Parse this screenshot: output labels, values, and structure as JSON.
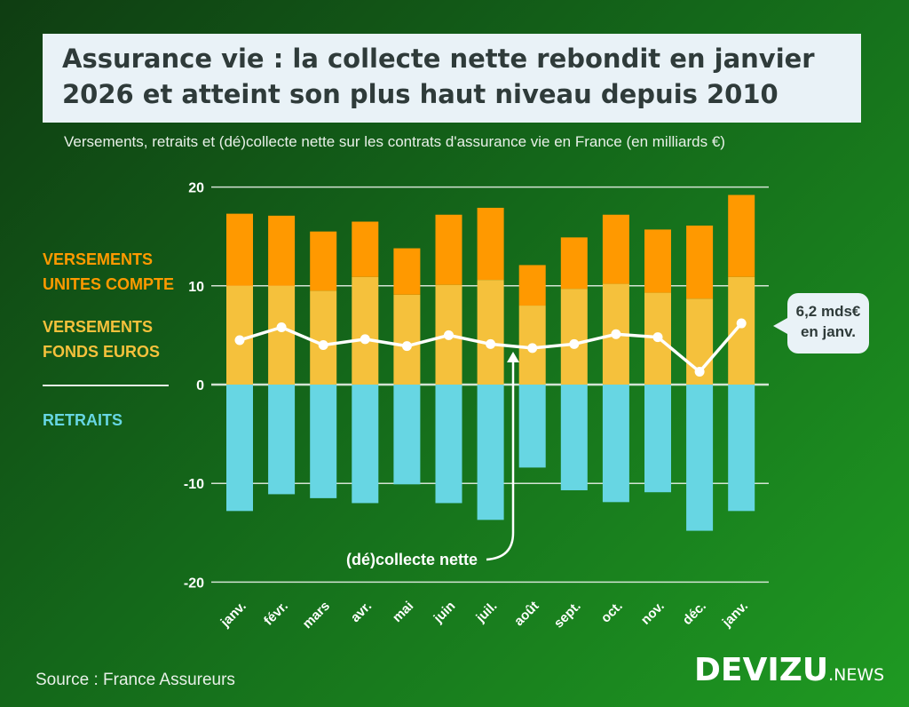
{
  "title_lines": [
    "Assurance vie : la collecte nette rebondit en janvier",
    "2026 et atteint son plus haut niveau depuis 2010"
  ],
  "subtitle": "Versements, retraits et (dé)collecte nette sur les contrats d'assurance vie en France (en milliards €)",
  "legend": {
    "uc_line1": "VERSEMENTS",
    "uc_line2": "UNITES COMPTE",
    "euro_line1": "VERSEMENTS",
    "euro_line2": "FONDS EUROS",
    "retraits": "RETRAITS"
  },
  "annotation_net": "(dé)collecte nette",
  "callout": {
    "line1": "6,2 mds€",
    "line2": "en janv."
  },
  "source": "Source : France Assureurs",
  "logo": {
    "main": "DEVIZU",
    "suffix": ".NEWS"
  },
  "colors": {
    "uc": "#ff9900",
    "euros": "#f5c13c",
    "retraits": "#67d6e3",
    "net": "#ffffff",
    "legend_uc": "#ff9a00",
    "legend_euro": "#f5c13c",
    "legend_retraits": "#67d6e3"
  },
  "chart_data": {
    "type": "bar",
    "stacked": true,
    "title": "Assurance vie : la collecte nette rebondit en janvier 2026 et atteint son plus haut niveau depuis 2010",
    "categories": [
      "janv.",
      "févr.",
      "mars",
      "avr.",
      "mai",
      "juin",
      "juil.",
      "août",
      "sept.",
      "oct.",
      "nov.",
      "déc.",
      "janv."
    ],
    "ylim": [
      -20,
      20
    ],
    "yticks": [
      20,
      10,
      0,
      -10,
      -20
    ],
    "grid": true,
    "legend_placement": "left",
    "series": [
      {
        "name": "VERSEMENTS FONDS EUROS",
        "type": "bar",
        "values": [
          10.0,
          10.0,
          9.5,
          10.9,
          9.1,
          10.1,
          10.6,
          8.0,
          9.7,
          10.2,
          9.3,
          8.7,
          10.9
        ]
      },
      {
        "name": "VERSEMENTS UNITES COMPTE",
        "type": "bar",
        "values": [
          7.3,
          7.1,
          6.0,
          5.6,
          4.7,
          7.1,
          7.3,
          4.1,
          5.2,
          7.0,
          6.4,
          7.4,
          8.3
        ]
      },
      {
        "name": "RETRAITS",
        "type": "bar",
        "values": [
          -12.8,
          -11.1,
          -11.5,
          -12.0,
          -10.1,
          -12.0,
          -13.7,
          -8.4,
          -10.7,
          -11.9,
          -10.9,
          -14.8,
          -12.8
        ]
      },
      {
        "name": "(dé)collecte nette",
        "type": "line",
        "values": [
          4.5,
          5.8,
          4.0,
          4.6,
          3.9,
          5.0,
          4.1,
          3.7,
          4.1,
          5.1,
          4.8,
          1.3,
          6.2
        ]
      }
    ]
  }
}
